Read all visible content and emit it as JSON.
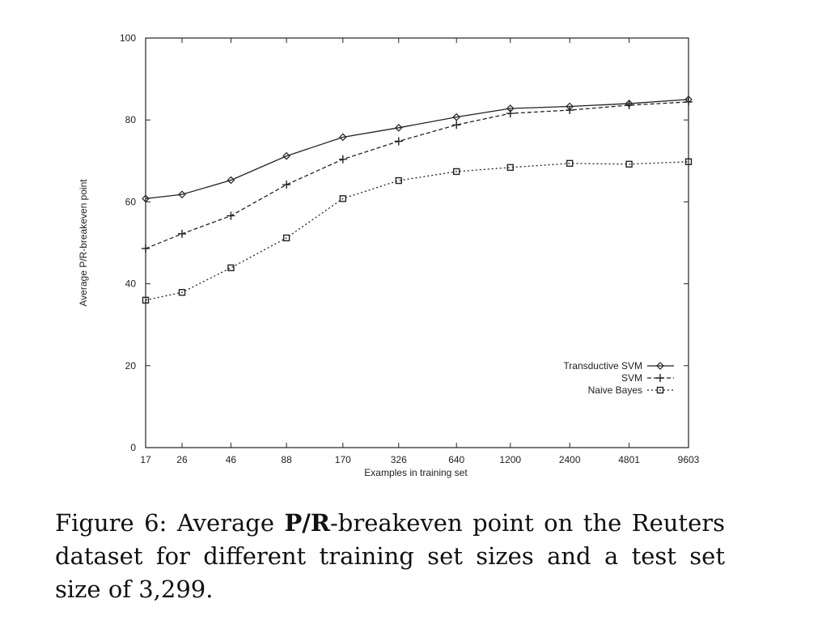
{
  "chart_data": {
    "type": "line",
    "xlabel": "Examples in training set",
    "ylabel": "Average P/R-breakeven point",
    "x_scale": "log",
    "categories": [
      "17",
      "26",
      "46",
      "88",
      "170",
      "326",
      "640",
      "1200",
      "2400",
      "4801",
      "9603"
    ],
    "x": [
      17,
      26,
      46,
      88,
      170,
      326,
      640,
      1200,
      2400,
      4801,
      9603
    ],
    "ylim": [
      0,
      100
    ],
    "yticks": [
      "0",
      "20",
      "40",
      "60",
      "80",
      "100"
    ],
    "grid": false,
    "legend_position": "bottom-right",
    "series": [
      {
        "name": "Transductive SVM",
        "marker": "diamond",
        "dash": "solid",
        "values": [
          60.8,
          61.8,
          65.3,
          71.2,
          75.8,
          78.1,
          80.7,
          82.8,
          83.3,
          84.0,
          85.0
        ]
      },
      {
        "name": "SVM",
        "marker": "plus",
        "dash": "dashed",
        "values": [
          48.6,
          52.2,
          56.6,
          64.2,
          70.4,
          74.8,
          78.8,
          81.6,
          82.4,
          83.6,
          84.4
        ]
      },
      {
        "name": "Naive Bayes",
        "marker": "square",
        "dash": "dotted",
        "values": [
          36.0,
          37.9,
          43.9,
          51.2,
          60.8,
          65.2,
          67.4,
          68.4,
          69.4,
          69.2,
          69.8
        ]
      }
    ]
  },
  "caption": {
    "prefix": "Figure 6:  Average ",
    "bold": "P/R",
    "suffix": "-breakeven point on the Reuters dataset for different training set sizes and a test set size of 3,299."
  }
}
